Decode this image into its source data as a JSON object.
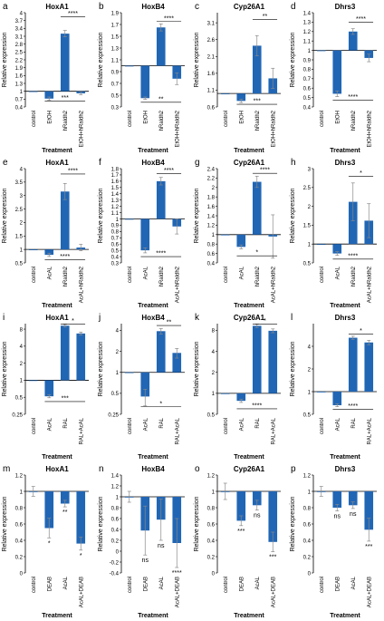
{
  "figure": {
    "accent_color": "#2166b5",
    "xaxis_label": "Treatment",
    "yaxis_label": "Relative expression"
  },
  "chart_data": [
    {
      "letter": "a",
      "type": "bar",
      "title": "HoxA1",
      "scale": "linear",
      "ylim": [
        0.4,
        4.0
      ],
      "baseline": 1,
      "yticks": [
        "0.4",
        "0.7",
        "1",
        "1.3",
        "1.6",
        "1.9",
        "2.2",
        "2.5",
        "2.8",
        "3.1",
        "3.4",
        "3.7",
        "4"
      ],
      "ytick_values": [
        0.4,
        0.7,
        1,
        1.3,
        1.6,
        1.9,
        2.2,
        2.5,
        2.8,
        3.1,
        3.4,
        3.7,
        4
      ],
      "categories": [
        "control",
        "EtOH",
        "hRaldh2",
        "EtOH+hRaldh2"
      ],
      "values": [
        1.0,
        0.72,
        3.2,
        0.92
      ],
      "errors": [
        0,
        0.06,
        0.12,
        0.05
      ],
      "sig": [
        {
          "text": "****",
          "pos": "top",
          "from": 2,
          "to": 3,
          "ylevel": 3.85
        },
        {
          "text": "***",
          "pos": "bottom",
          "from": 1,
          "to": 3,
          "ylevel": 0.62
        }
      ]
    },
    {
      "letter": "b",
      "type": "bar",
      "title": "HoxB4",
      "scale": "linear",
      "ylim": [
        0.3,
        1.9
      ],
      "baseline": 1,
      "yticks": [
        "0.3",
        "0.5",
        "0.7",
        "0.9",
        "1.1",
        "1.3",
        "1.5",
        "1.7",
        "1.9"
      ],
      "ytick_values": [
        0.3,
        0.5,
        0.7,
        0.9,
        1.1,
        1.3,
        1.5,
        1.7,
        1.9
      ],
      "categories": [
        "control",
        "EtOH",
        "hRaldh2",
        "EtOH+hRaldh2"
      ],
      "values": [
        1.0,
        0.45,
        1.65,
        0.78
      ],
      "errors": [
        0,
        0.02,
        0.06,
        0.1
      ],
      "sig": [
        {
          "text": "****",
          "pos": "top",
          "from": 2,
          "to": 3,
          "ylevel": 1.75
        },
        {
          "text": "**",
          "pos": "bottom",
          "from": 1,
          "to": 3,
          "ylevel": 0.38
        }
      ]
    },
    {
      "letter": "c",
      "type": "bar",
      "title": "Cyp26A1",
      "scale": "linear",
      "ylim": [
        0.6,
        3.4
      ],
      "baseline": 1,
      "yticks": [
        "0.6",
        "1.1",
        "1.6",
        "2.1",
        "2.6",
        "3.1"
      ],
      "ytick_values": [
        0.6,
        1.1,
        1.6,
        2.1,
        2.6,
        3.1
      ],
      "categories": [
        "control",
        "EtOH",
        "hRaldh2",
        "EtOH+hRaldh2"
      ],
      "values": [
        1.0,
        0.78,
        2.42,
        1.45
      ],
      "errors": [
        0,
        0.05,
        0.3,
        0.3
      ],
      "sig": [
        {
          "text": "**",
          "pos": "top",
          "from": 2,
          "to": 3,
          "ylevel": 3.2
        },
        {
          "text": "***",
          "pos": "bottom",
          "from": 1,
          "to": 3,
          "ylevel": 0.68
        }
      ]
    },
    {
      "letter": "d",
      "type": "bar",
      "title": "Dhrs3",
      "scale": "linear",
      "ylim": [
        0.4,
        1.4
      ],
      "baseline": 1,
      "yticks": [
        "0.4",
        "0.5",
        "0.6",
        "0.7",
        "0.8",
        "0.9",
        "1",
        "1.1",
        "1.2",
        "1.3",
        "1.4"
      ],
      "ytick_values": [
        0.4,
        0.5,
        0.6,
        0.7,
        0.8,
        0.9,
        1,
        1.1,
        1.2,
        1.3,
        1.4
      ],
      "categories": [
        "control",
        "EtOH",
        "hRaldh2",
        "EtOH+hRaldh2"
      ],
      "values": [
        1.0,
        0.54,
        1.2,
        0.92
      ],
      "errors": [
        0,
        0.03,
        0.03,
        0.04
      ],
      "sig": [
        {
          "text": "****",
          "pos": "top",
          "from": 2,
          "to": 3,
          "ylevel": 1.3
        },
        {
          "text": "****",
          "pos": "bottom",
          "from": 1,
          "to": 3,
          "ylevel": 0.47
        }
      ]
    },
    {
      "letter": "e",
      "type": "bar",
      "title": "HoxA1",
      "scale": "linear",
      "ylim": [
        0.5,
        4.0
      ],
      "baseline": 1,
      "yticks": [
        "0.5",
        "1",
        "1.5",
        "2",
        "2.5",
        "3",
        "3.5",
        "4"
      ],
      "ytick_values": [
        0.5,
        1,
        1.5,
        2,
        2.5,
        3,
        3.5,
        4
      ],
      "categories": [
        "control",
        "AcAL",
        "hRaldh2",
        "AcAL+hRaldh2"
      ],
      "values": [
        1.0,
        0.8,
        3.15,
        1.07
      ],
      "errors": [
        0,
        0.06,
        0.3,
        0.12
      ],
      "sig": [
        {
          "text": "****",
          "pos": "top",
          "from": 2,
          "to": 3,
          "ylevel": 3.8
        },
        {
          "text": "****",
          "pos": "bottom",
          "from": 1,
          "to": 3,
          "ylevel": 0.62
        }
      ]
    },
    {
      "letter": "f",
      "type": "bar",
      "title": "HoxB4",
      "scale": "linear",
      "ylim": [
        0.3,
        1.8
      ],
      "baseline": 1,
      "yticks": [
        "0.3",
        "0.4",
        "0.5",
        "0.6",
        "0.7",
        "0.8",
        "0.9",
        "1",
        "1.1",
        "1.2",
        "1.3",
        "1.4",
        "1.5",
        "1.6",
        "1.7",
        "1.8"
      ],
      "ytick_values": [
        0.3,
        0.4,
        0.5,
        0.6,
        0.7,
        0.8,
        0.9,
        1,
        1.1,
        1.2,
        1.3,
        1.4,
        1.5,
        1.6,
        1.7,
        1.8
      ],
      "categories": [
        "control",
        "AcAL",
        "hRaldh2",
        "AcAL+hRaldh2"
      ],
      "values": [
        1.0,
        0.5,
        1.6,
        0.88
      ],
      "errors": [
        0,
        0.04,
        0.06,
        0.12
      ],
      "sig": [
        {
          "text": "****",
          "pos": "top",
          "from": 2,
          "to": 3,
          "ylevel": 1.72
        },
        {
          "text": "****",
          "pos": "bottom",
          "from": 1,
          "to": 3,
          "ylevel": 0.4
        }
      ]
    },
    {
      "letter": "g",
      "type": "bar",
      "title": "Cyp26A1",
      "scale": "linear",
      "ylim": [
        0.4,
        2.4
      ],
      "baseline": 1,
      "yticks": [
        "0.4",
        "0.6",
        "0.8",
        "1",
        "1.2",
        "1.4",
        "1.6",
        "1.8",
        "2",
        "2.2",
        "2.4"
      ],
      "ytick_values": [
        0.4,
        0.6,
        0.8,
        1,
        1.2,
        1.4,
        1.6,
        1.8,
        2,
        2.2,
        2.4
      ],
      "categories": [
        "control",
        "AcAL",
        "hRaldh2",
        "AcAL+hRaldh2"
      ],
      "values": [
        1.0,
        0.74,
        2.12,
        0.96
      ],
      "errors": [
        0,
        0.04,
        0.12,
        0.46
      ],
      "sig": [
        {
          "text": "****",
          "pos": "top",
          "from": 2,
          "to": 3,
          "ylevel": 2.3
        },
        {
          "text": "*",
          "pos": "bottom",
          "from": 1,
          "to": 3,
          "ylevel": 0.55
        }
      ]
    },
    {
      "letter": "h",
      "type": "bar",
      "title": "Dhrs3",
      "scale": "linear",
      "ylim": [
        0.5,
        3.0
      ],
      "baseline": 1,
      "yticks": [
        "0.5",
        "1",
        "1.5",
        "2",
        "2.5",
        "3"
      ],
      "ytick_values": [
        0.5,
        1,
        1.5,
        2,
        2.5,
        3
      ],
      "categories": [
        "control",
        "AcAL",
        "hRaldh2",
        "AcAL+hRaldh2"
      ],
      "values": [
        1.0,
        0.75,
        2.12,
        1.62
      ],
      "errors": [
        0,
        0.05,
        0.5,
        0.45
      ],
      "sig": [
        {
          "text": "*",
          "pos": "top",
          "from": 2,
          "to": 3,
          "ylevel": 2.8
        },
        {
          "text": "****",
          "pos": "bottom",
          "from": 1,
          "to": 3,
          "ylevel": 0.6
        }
      ]
    },
    {
      "letter": "i",
      "type": "bar",
      "title": "HoxA1",
      "scale": "log",
      "ylim": [
        0.25,
        10
      ],
      "baseline": 1,
      "yticks": [
        "0.25",
        "0.5",
        "1",
        "2",
        "4",
        "8"
      ],
      "ytick_values": [
        0.25,
        0.5,
        1,
        2,
        4,
        8
      ],
      "categories": [
        "control",
        "AcAL",
        "RAL",
        "RAL+AcAL"
      ],
      "values": [
        1.0,
        0.52,
        9.2,
        6.7
      ],
      "errors": [
        0,
        0.03,
        0.5,
        0.4
      ],
      "sig": [
        {
          "text": "*",
          "pos": "top",
          "from": 2,
          "to": 3,
          "ylevel": 9.9
        },
        {
          "text": "***",
          "pos": "bottom",
          "from": 1,
          "to": 3,
          "ylevel": 0.42
        }
      ]
    },
    {
      "letter": "j",
      "type": "bar",
      "title": "HoxB4",
      "scale": "log",
      "ylim": [
        0.25,
        5
      ],
      "baseline": 1,
      "yticks": [
        "0.25",
        "0.5",
        "1",
        "2",
        "4"
      ],
      "ytick_values": [
        0.25,
        0.5,
        1,
        2,
        4
      ],
      "categories": [
        "control",
        "AcAL",
        "RAL",
        "RAL+AcAL"
      ],
      "values": [
        1.0,
        0.45,
        3.9,
        1.9
      ],
      "errors": [
        0,
        0.12,
        0.35,
        0.3
      ],
      "sig": [
        {
          "text": "**",
          "pos": "top",
          "from": 2,
          "to": 3,
          "ylevel": 4.7
        },
        {
          "text": "*",
          "pos": "bottom",
          "from": 1,
          "to": 3,
          "ylevel": 0.32
        }
      ]
    },
    {
      "letter": "k",
      "type": "bar",
      "title": "Cyp26A1",
      "scale": "log",
      "ylim": [
        0.5,
        10
      ],
      "baseline": 1,
      "yticks": [
        "0.5",
        "1",
        "2",
        "4",
        "8"
      ],
      "ytick_values": [
        0.5,
        1,
        2,
        4,
        8
      ],
      "categories": [
        "control",
        "AcAL",
        "RAL",
        "RAL+AcAL"
      ],
      "values": [
        1.0,
        0.78,
        9.3,
        7.9
      ],
      "errors": [
        0,
        0.04,
        0.5,
        0.5
      ],
      "sig": [
        {
          "text": "*",
          "pos": "top",
          "from": 2,
          "to": 3,
          "ylevel": 9.9
        },
        {
          "text": "****",
          "pos": "bottom",
          "from": 1,
          "to": 3,
          "ylevel": 0.6
        }
      ]
    },
    {
      "letter": "l",
      "type": "bar",
      "title": "Dhrs3",
      "scale": "log",
      "ylim": [
        0.5,
        8
      ],
      "baseline": 1,
      "yticks": [
        "0.5",
        "1",
        "2",
        "4"
      ],
      "ytick_values": [
        0.5,
        1,
        2,
        4
      ],
      "categories": [
        "control",
        "AcAL",
        "RAL",
        "RAL+AcAL"
      ],
      "values": [
        1.0,
        0.66,
        5.2,
        4.5
      ],
      "errors": [
        0,
        0.03,
        0.25,
        0.3
      ],
      "sig": [
        {
          "text": "*",
          "pos": "top",
          "from": 2,
          "to": 3,
          "ylevel": 5.8
        },
        {
          "text": "****",
          "pos": "bottom",
          "from": 1,
          "to": 3,
          "ylevel": 0.58
        }
      ]
    },
    {
      "letter": "m",
      "type": "bar",
      "title": "HoxA1",
      "scale": "linear",
      "ylim": [
        0,
        1.2
      ],
      "baseline": 1,
      "yticks": [
        "0",
        "0.2",
        "0.4",
        "0.6",
        "0.8",
        "1",
        "1.2"
      ],
      "ytick_values": [
        0,
        0.2,
        0.4,
        0.6,
        0.8,
        1,
        1.2
      ],
      "categories": [
        "control",
        "DEAB",
        "AcAL",
        "AcAL+DEAB"
      ],
      "values": [
        1.0,
        0.55,
        0.85,
        0.36
      ],
      "errors": [
        0.06,
        0.12,
        0.04,
        0.08
      ],
      "sig": [
        {
          "text": "*",
          "pos": "below",
          "bar": 1
        },
        {
          "text": "**",
          "pos": "below",
          "bar": 2
        },
        {
          "text": "*",
          "pos": "below",
          "bar": 3
        }
      ]
    },
    {
      "letter": "n",
      "type": "bar",
      "title": "HoxB4",
      "scale": "linear",
      "ylim": [
        -0.4,
        1.4
      ],
      "baseline": 1,
      "yticks": [
        "-0.4",
        "-0.2",
        "0",
        "0.2",
        "0.4",
        "0.6",
        "0.8",
        "1",
        "1.2",
        "1.4"
      ],
      "ytick_values": [
        -0.4,
        -0.2,
        0,
        0.2,
        0.4,
        0.6,
        0.8,
        1,
        1.2,
        1.4
      ],
      "categories": [
        "control",
        "DEAB",
        "AcAL",
        "AcAL+DEAB"
      ],
      "values": [
        1.0,
        0.38,
        0.58,
        0.15
      ],
      "errors": [
        0.1,
        0.45,
        0.38,
        0.45
      ],
      "sig": [
        {
          "text": "ns",
          "pos": "below",
          "bar": 1
        },
        {
          "text": "ns",
          "pos": "below",
          "bar": 2
        },
        {
          "text": "****",
          "pos": "below",
          "bar": 3
        }
      ]
    },
    {
      "letter": "o",
      "type": "bar",
      "title": "Cyp26A1",
      "scale": "linear",
      "ylim": [
        0,
        1.2
      ],
      "baseline": 1,
      "yticks": [
        "0",
        "0.2",
        "0.4",
        "0.6",
        "0.8",
        "1",
        "1.2"
      ],
      "ytick_values": [
        0,
        0.2,
        0.4,
        0.6,
        0.8,
        1,
        1.2
      ],
      "categories": [
        "control",
        "DEAB",
        "AcAL",
        "AcAL+DEAB"
      ],
      "values": [
        1.0,
        0.64,
        0.83,
        0.38
      ],
      "errors": [
        0.1,
        0.06,
        0.06,
        0.12
      ],
      "sig": [
        {
          "text": "***",
          "pos": "below",
          "bar": 1
        },
        {
          "text": "ns",
          "pos": "below",
          "bar": 2
        },
        {
          "text": "***",
          "pos": "below",
          "bar": 3
        }
      ]
    },
    {
      "letter": "p",
      "type": "bar",
      "title": "Dhrs3",
      "scale": "linear",
      "ylim": [
        0,
        1.2
      ],
      "baseline": 1,
      "yticks": [
        "0",
        "0.2",
        "0.4",
        "0.6",
        "0.8",
        "1",
        "1.2"
      ],
      "ytick_values": [
        0,
        0.2,
        0.4,
        0.6,
        0.8,
        1,
        1.2
      ],
      "categories": [
        "control",
        "DEAB",
        "AcAL",
        "AcAL+DEAB"
      ],
      "values": [
        1.0,
        0.8,
        0.83,
        0.53
      ],
      "errors": [
        0.06,
        0.04,
        0.04,
        0.14
      ],
      "sig": [
        {
          "text": "ns",
          "pos": "below",
          "bar": 1
        },
        {
          "text": "ns",
          "pos": "below",
          "bar": 2
        },
        {
          "text": "***",
          "pos": "below",
          "bar": 3
        }
      ]
    }
  ]
}
